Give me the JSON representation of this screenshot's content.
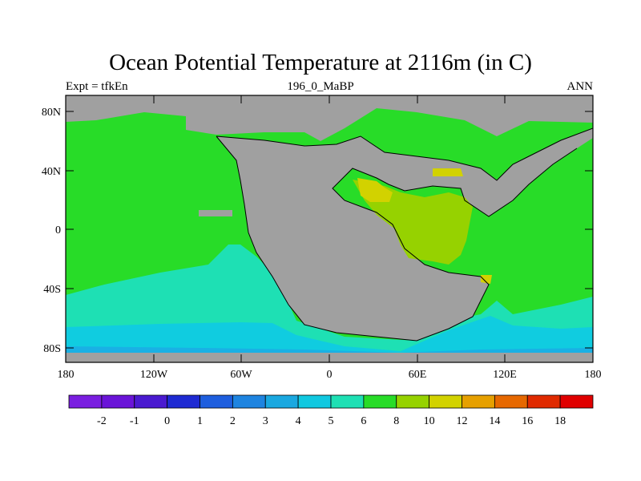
{
  "title": "Ocean Potential Temperature at 2116m (in C)",
  "subtitle_left": "Expt = tfkEn",
  "subtitle_center": "196_0_MaBP",
  "subtitle_right": "ANN",
  "y_ticks": [
    "80N",
    "40N",
    "0",
    "40S",
    "80S"
  ],
  "x_ticks": [
    "180",
    "120W",
    "60W",
    "0",
    "60E",
    "120E",
    "180"
  ],
  "colorbar": {
    "colors": [
      "#7a1ee0",
      "#6a14d8",
      "#4a1ad0",
      "#1e2ad2",
      "#1e5ede",
      "#1e84e0",
      "#1aa8e0",
      "#10c8e0",
      "#1ee0b4",
      "#28dc28",
      "#96d200",
      "#d2d200",
      "#e6a000",
      "#e66800",
      "#e02a00",
      "#e00000"
    ],
    "labels": [
      "-2",
      "-1",
      "0",
      "1",
      "2",
      "3",
      "4",
      "5",
      "6",
      "8",
      "10",
      "12",
      "14",
      "16",
      "18"
    ]
  },
  "map_colors": {
    "land": "#a0a0a0",
    "temp_2_4": "#1ab0e4",
    "temp_4_5": "#10cce0",
    "temp_5_6": "#1ee0b4",
    "temp_6_8": "#28dc28",
    "temp_8_10": "#96d200",
    "temp_10_12": "#d2d200"
  }
}
